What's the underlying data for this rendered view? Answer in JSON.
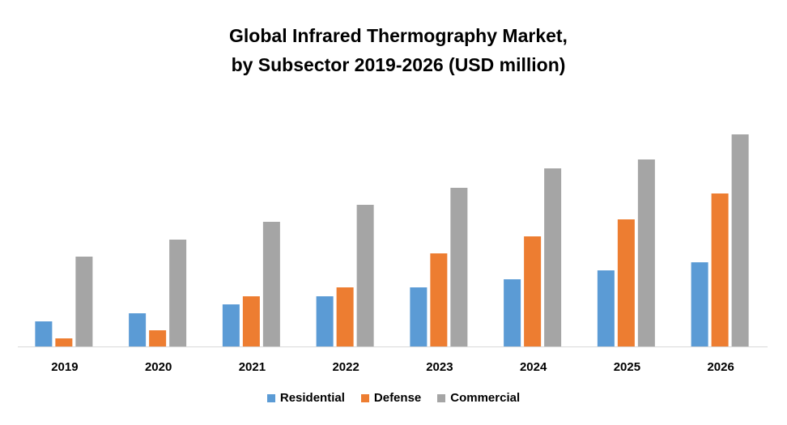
{
  "chart_data": {
    "type": "bar",
    "title": [
      "Global Infrared Thermography Market,",
      "by Subsector 2019-2026 (USD million)"
    ],
    "categories": [
      "2019",
      "2020",
      "2021",
      "2022",
      "2023",
      "2024",
      "2025",
      "2026"
    ],
    "series": [
      {
        "name": "Residential",
        "color": "#5b9bd5",
        "values": [
          31,
          41,
          52,
          62,
          73,
          83,
          94,
          104
        ]
      },
      {
        "name": "Defense",
        "color": "#ed7d31",
        "values": [
          10,
          20,
          62,
          73,
          115,
          136,
          157,
          189
        ]
      },
      {
        "name": "Commercial",
        "color": "#a5a5a5",
        "values": [
          111,
          132,
          154,
          175,
          196,
          220,
          231,
          262
        ]
      }
    ],
    "legend": "bottom"
  }
}
